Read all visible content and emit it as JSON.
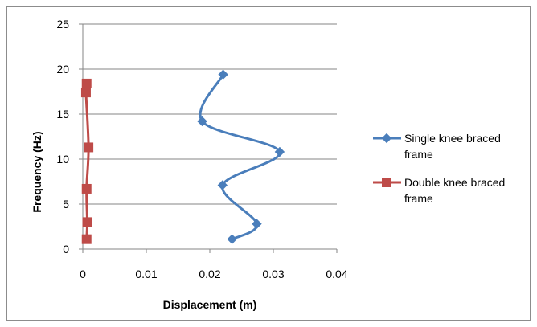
{
  "chart_data": {
    "type": "scatter",
    "title": "",
    "xlabel": "Displacement (m)",
    "ylabel": "Frequency (Hz)",
    "xlim": [
      0,
      0.04
    ],
    "ylim": [
      0,
      25
    ],
    "x_ticks": [
      "0",
      "0.01",
      "0.02",
      "0.03",
      "0.04"
    ],
    "y_ticks": [
      "0",
      "5",
      "10",
      "15",
      "20",
      "25"
    ],
    "grid": "horizontal",
    "legend": "right",
    "smooth_lines": true,
    "series": [
      {
        "name_lines": [
          "Single knee braced",
          "frame"
        ],
        "color": "#4a7ebb",
        "marker": "diamond",
        "x": [
          0.0235,
          0.0274,
          0.022,
          0.031,
          0.0188,
          0.0221
        ],
        "y": [
          1.1,
          2.8,
          7.1,
          10.8,
          14.2,
          19.4
        ]
      },
      {
        "name_lines": [
          "Double knee braced",
          "frame"
        ],
        "color": "#be4b48",
        "marker": "square",
        "x": [
          0.0006,
          0.0007,
          0.0006,
          0.0009,
          0.0005,
          0.0006
        ],
        "y": [
          1.1,
          3.0,
          6.7,
          11.3,
          17.4,
          18.4
        ]
      }
    ]
  }
}
